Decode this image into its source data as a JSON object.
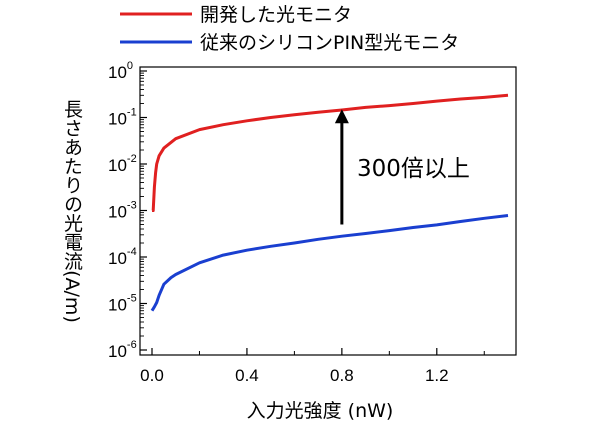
{
  "chart_data": {
    "type": "line",
    "xlabel": "入力光強度 (nW)",
    "ylabel": "長さあたりの光電流(A/m)",
    "xlim": [
      0.0,
      1.5
    ],
    "ylim": [
      1e-06,
      1
    ],
    "yscale": "log",
    "xticks": [
      {
        "value": 0.0,
        "label": "0.0"
      },
      {
        "value": 0.4,
        "label": "0.4"
      },
      {
        "value": 0.8,
        "label": "0.8"
      },
      {
        "value": 1.2,
        "label": "1.2"
      }
    ],
    "yticks": [
      {
        "value": 1,
        "base": "10",
        "exp": "0"
      },
      {
        "value": 0.1,
        "base": "10",
        "exp": "-1"
      },
      {
        "value": 0.01,
        "base": "10",
        "exp": "-2"
      },
      {
        "value": 0.001,
        "base": "10",
        "exp": "-3"
      },
      {
        "value": 0.0001,
        "base": "10",
        "exp": "-4"
      },
      {
        "value": 1e-05,
        "base": "10",
        "exp": "-5"
      },
      {
        "value": 1e-06,
        "base": "10",
        "exp": "-6"
      }
    ],
    "series": [
      {
        "name": "開発した光モニタ",
        "color": "#e02020",
        "x": [
          0.0,
          0.005,
          0.01,
          0.015,
          0.02,
          0.03,
          0.05,
          0.1,
          0.2,
          0.3,
          0.4,
          0.5,
          0.6,
          0.7,
          0.8,
          0.9,
          1.0,
          1.1,
          1.2,
          1.3,
          1.4,
          1.5
        ],
        "y": [
          0.001,
          0.001,
          0.0032,
          0.0065,
          0.01,
          0.015,
          0.022,
          0.035,
          0.055,
          0.07,
          0.085,
          0.1,
          0.115,
          0.13,
          0.145,
          0.165,
          0.18,
          0.2,
          0.225,
          0.25,
          0.27,
          0.3
        ]
      },
      {
        "name": "従来のシリコンPIN型光モニタ",
        "color": "#1a3fd0",
        "x": [
          0.0,
          0.01,
          0.02,
          0.03,
          0.05,
          0.08,
          0.1,
          0.2,
          0.3,
          0.4,
          0.5,
          0.6,
          0.7,
          0.8,
          0.9,
          1.0,
          1.1,
          1.2,
          1.3,
          1.4,
          1.5
        ],
        "y": [
          7e-06,
          8.5e-06,
          1.05e-05,
          1.5e-05,
          2.6e-05,
          3.6e-05,
          4.2e-05,
          7.5e-05,
          0.00011,
          0.00014,
          0.00017,
          0.0002,
          0.00024,
          0.00028,
          0.00032,
          0.00037,
          0.00043,
          0.00049,
          0.00058,
          0.00068,
          0.00078
        ]
      }
    ],
    "legend": "top-left, above plot",
    "grid": false,
    "annotation": {
      "text": "300倍以上",
      "arrow": {
        "x": 0.8,
        "from": 0.0005,
        "to": 0.15
      }
    }
  }
}
